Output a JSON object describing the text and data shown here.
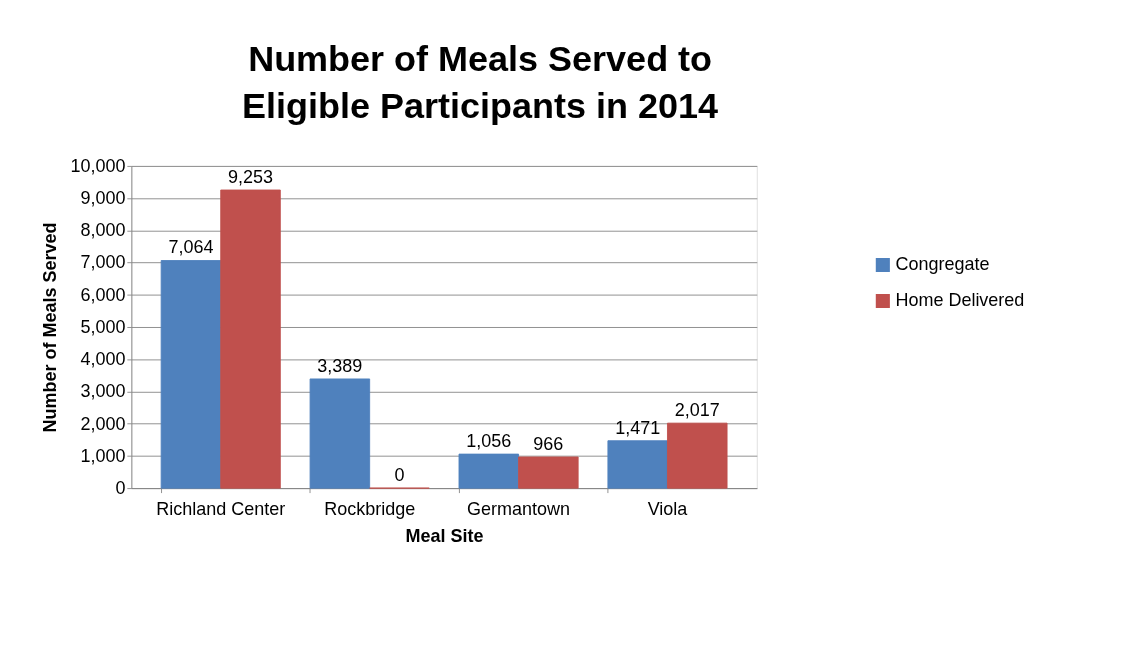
{
  "chart_data": {
    "type": "bar",
    "title": "Number of Meals Served to Eligible Participants in 2014",
    "xlabel": "Meal Site",
    "ylabel": "Number of Meals Served",
    "categories": [
      "Richland Center",
      "Rockbridge",
      "Germantown",
      "Viola"
    ],
    "series": [
      {
        "name": "Congregate",
        "color": "#4f81bd",
        "values": [
          7064,
          3389,
          1056,
          1471
        ],
        "value_labels": [
          "7,064",
          "3,389",
          "1,056",
          "1,471"
        ]
      },
      {
        "name": "Home Delivered",
        "color": "#c0504d",
        "values": [
          9253,
          0,
          966,
          2017
        ],
        "value_labels": [
          "9,253",
          "0",
          "966",
          "2,017"
        ]
      }
    ],
    "ylim": [
      0,
      10000
    ],
    "yticks": [
      0,
      {
        "value": 1000,
        "label": "1,000"
      },
      {
        "value": 2000,
        "label": "2,000"
      },
      {
        "value": 3000,
        "label": "3,000"
      },
      {
        "value": 4000,
        "label": "4,000"
      },
      {
        "value": 5000,
        "label": "5,000"
      },
      {
        "value": 6000,
        "label": "6,000"
      },
      {
        "value": 7000,
        "label": "7,000"
      },
      {
        "value": 8000,
        "label": "8,000"
      },
      {
        "value": 9000,
        "label": "9,000"
      },
      {
        "value": 10000,
        "label": "10,000"
      }
    ],
    "grid": "y",
    "legend": "right"
  }
}
